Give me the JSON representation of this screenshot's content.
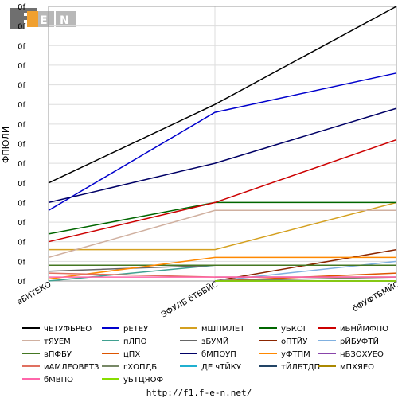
{
  "logo": {
    "letters": "F1EN",
    "colors": {
      "dark": "#6f6f6f",
      "light": "#b8b8b8",
      "accent": "#f0a030"
    }
  },
  "footer": {
    "url": "http://f1.f-e-n.net/"
  },
  "chart_data": {
    "type": "line",
    "ylabel": "ФПЮЛИ",
    "ytick_label": "0f",
    "ytick_count": 15,
    "categories": [
      "вБИТЕКО",
      "ЭФУЛБ бТБВЙС",
      "бФУФТБМЙС"
    ],
    "grid": true,
    "legend_position": "bottom",
    "series": [
      {
        "name": "чЕТУФБРЕО",
        "color": "#000000",
        "values": [
          5.0,
          9.0,
          14.0
        ]
      },
      {
        "name": "рЕТЕУ",
        "color": "#0000cc",
        "values": [
          3.6,
          8.6,
          10.6
        ]
      },
      {
        "name": "мШПМЛЕТ",
        "color": "#d4a020",
        "values": [
          1.6,
          1.6,
          4.0
        ]
      },
      {
        "name": "уБКОГ",
        "color": "#006600",
        "values": [
          2.4,
          4.0,
          4.0
        ]
      },
      {
        "name": "иБНЙМФПО",
        "color": "#cc0000",
        "values": [
          2.0,
          4.0,
          7.2
        ]
      },
      {
        "name": "тЯУЕМ",
        "color": "#d0b0a0",
        "values": [
          1.2,
          3.6,
          3.6
        ]
      },
      {
        "name": "пЛПО",
        "color": "#40a090",
        "values": [
          0.0,
          0.8,
          0.8
        ]
      },
      {
        "name": "зБУМЙ",
        "color": "#666666",
        "values": [
          0.5,
          0.8,
          0.8
        ]
      },
      {
        "name": "оПТЙУ",
        "color": "#8b2500",
        "values": [
          null,
          0.0,
          1.6
        ]
      },
      {
        "name": "рЙБУФТЙ",
        "color": "#80b0e0",
        "values": [
          null,
          0.0,
          1.0
        ]
      },
      {
        "name": "вПФБУ",
        "color": "#447722",
        "values": [
          0.8,
          0.8,
          0.8
        ]
      },
      {
        "name": "цПХ",
        "color": "#dd5500",
        "values": [
          null,
          0.0,
          0.4
        ]
      },
      {
        "name": "бМПОУП",
        "color": "#000066",
        "values": [
          4.0,
          6.0,
          8.8
        ]
      },
      {
        "name": "уФТПМ",
        "color": "#ff8800",
        "values": [
          0.1,
          1.2,
          1.2
        ]
      },
      {
        "name": "нБЗОХУЕО",
        "color": "#8844aa",
        "values": [
          null,
          0.2,
          0.2
        ]
      },
      {
        "name": "иАМЛЕОВЕТЗ",
        "color": "#e07060",
        "values": [
          0.4,
          0.2,
          0.2
        ]
      },
      {
        "name": "гХОПДБ",
        "color": "#778866",
        "values": [
          null,
          0.0,
          0.2
        ]
      },
      {
        "name": "ДЕ чТЙКУ",
        "color": "#20b0d0",
        "values": [
          null,
          0.0,
          0.0
        ]
      },
      {
        "name": "тЙЛБТДП",
        "color": "#224466",
        "values": [
          null,
          0.0,
          0.0
        ]
      },
      {
        "name": "мПХЯЕО",
        "color": "#aa8800",
        "values": [
          null,
          0.0,
          0.0
        ]
      },
      {
        "name": "бМВПО",
        "color": "#ff66aa",
        "values": [
          0.2,
          0.2,
          0.2
        ]
      },
      {
        "name": "уБТЦЯОФ",
        "color": "#88dd00",
        "values": [
          null,
          0.0,
          0.0
        ]
      }
    ]
  }
}
